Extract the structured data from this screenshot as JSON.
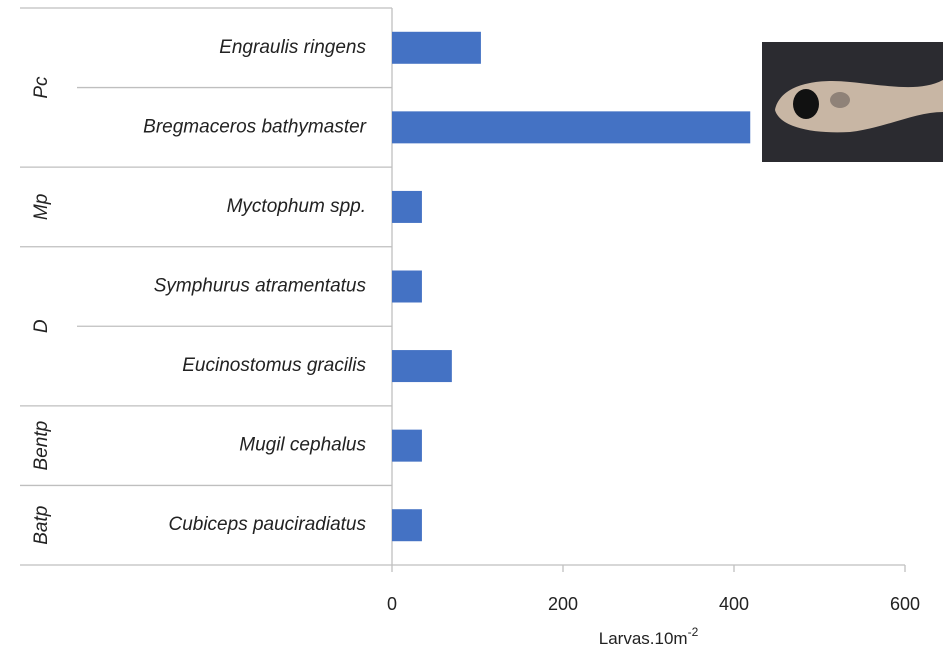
{
  "chart_data": {
    "type": "bar",
    "orientation": "horizontal",
    "color": "#4472c4",
    "groups": [
      {
        "label": "Pc",
        "categories": [
          "Engraulis ringens",
          "Bregmaceros bathymaster"
        ],
        "values": [
          104,
          419
        ]
      },
      {
        "label": "Mp",
        "categories": [
          "Myctophum spp."
        ],
        "values": [
          35
        ]
      },
      {
        "label": "D",
        "categories": [
          "Symphurus atramentatus",
          "Eucinostomus gracilis"
        ],
        "values": [
          35,
          70
        ]
      },
      {
        "label": "Bentp",
        "categories": [
          "Mugil cephalus"
        ],
        "values": [
          35
        ]
      },
      {
        "label": "Batp",
        "categories": [
          "Cubiceps pauciradiatus"
        ],
        "values": [
          35
        ]
      }
    ],
    "x_label": {
      "text": "Larvas.10m",
      "superscript": "-2"
    },
    "xlim": [
      0,
      600
    ],
    "xticks": [
      0,
      200,
      400,
      600
    ]
  }
}
